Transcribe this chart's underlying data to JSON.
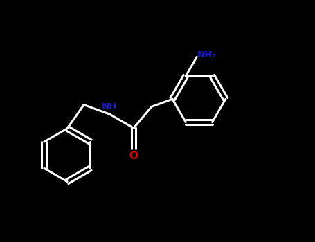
{
  "bg_color": "#000000",
  "lw": 2.2,
  "figsize": [
    4.55,
    3.5
  ],
  "dpi": 100,
  "wc": "#ffffff",
  "nc": "#1a1acc",
  "oc": "#dd0000",
  "r_hex": 0.78,
  "xlim": [
    0,
    9
  ],
  "ylim": [
    0,
    7
  ]
}
